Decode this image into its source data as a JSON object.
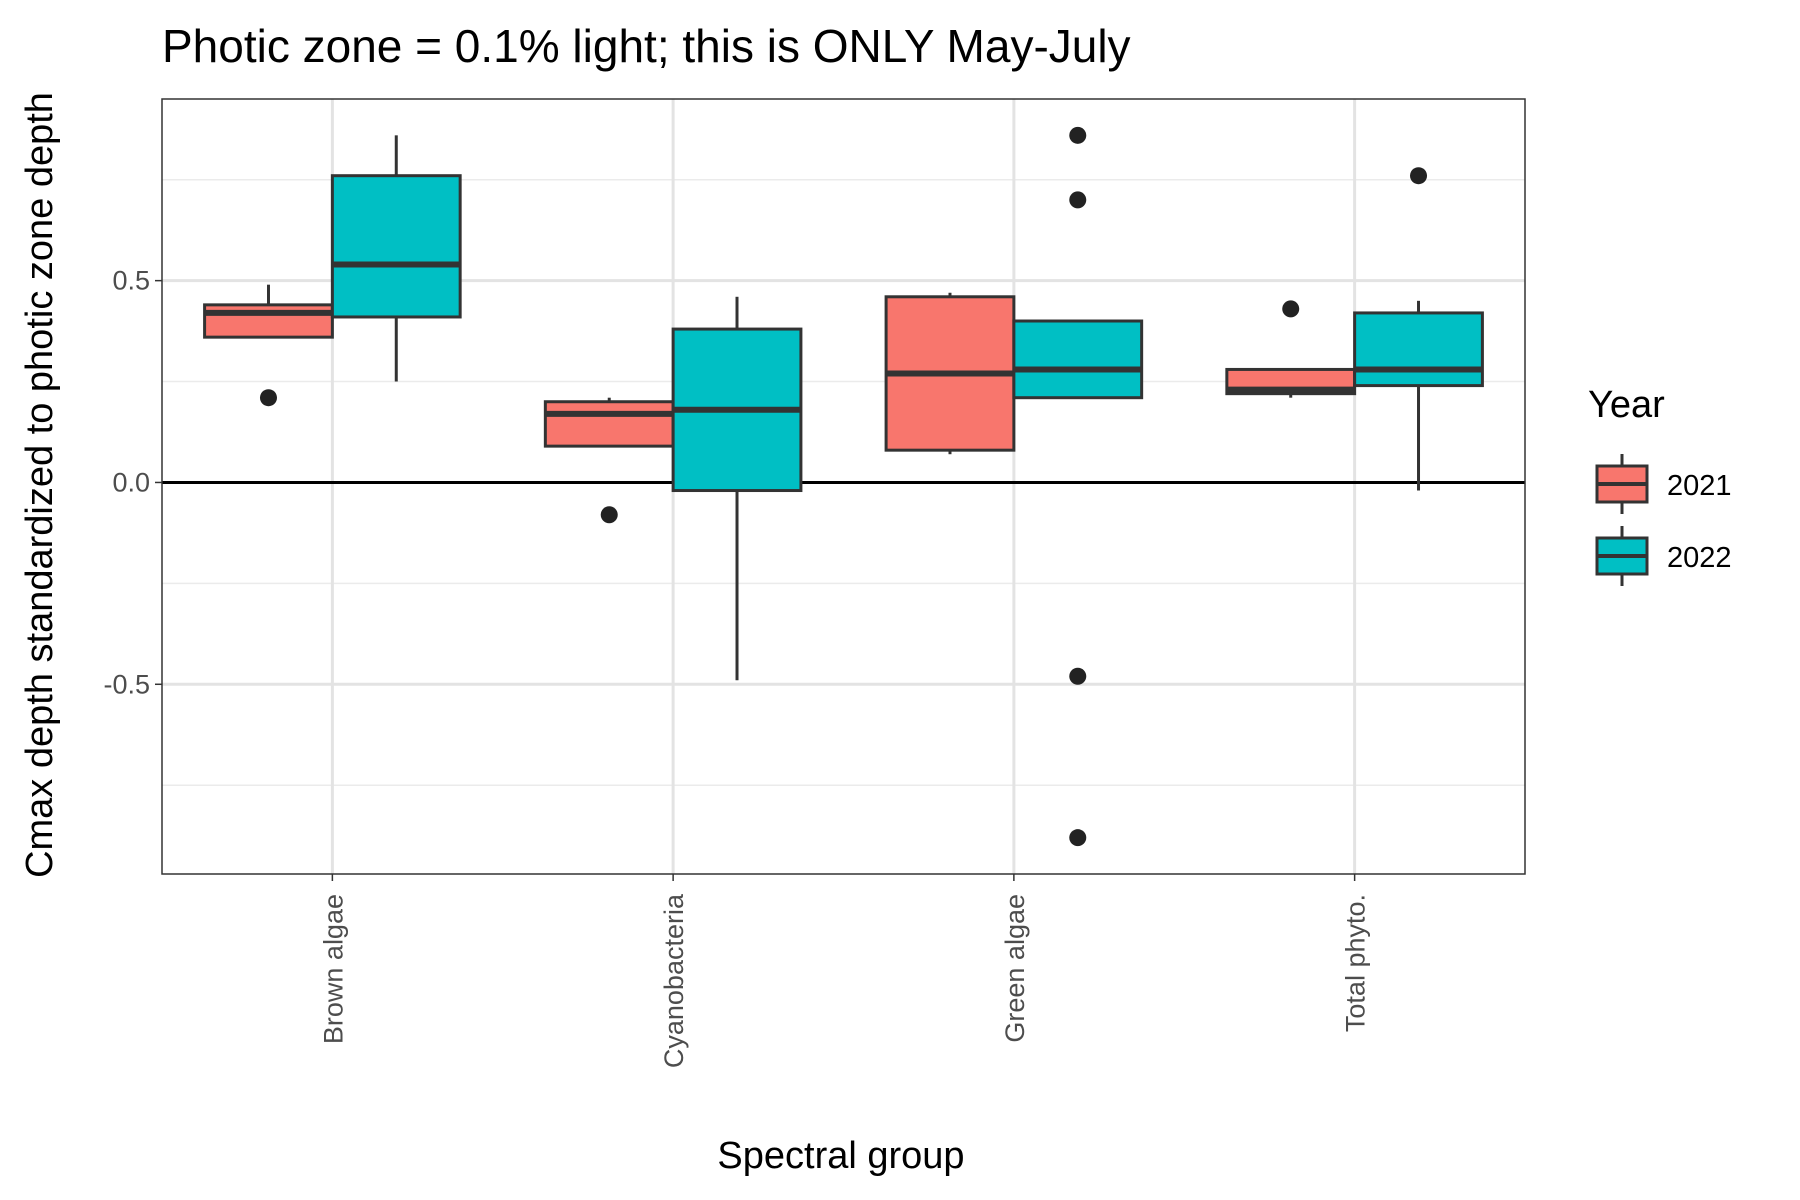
{
  "chart_data": {
    "type": "box",
    "title": "Photic zone = 0.1% light; this is ONLY May-July",
    "xlabel": "Spectral group",
    "ylabel": "Cmax depth standardized to photic zone depth",
    "ylim": [
      -0.97,
      0.95
    ],
    "yticks": [
      "-0.5",
      "0.0",
      "0.5"
    ],
    "ytick_values": [
      -0.5,
      0.0,
      0.5
    ],
    "grid": true,
    "zero_line": true,
    "categories": [
      "Brown algae",
      "Cyanobacteria",
      "Green algae",
      "Total phyto."
    ],
    "legend": {
      "title": "Year",
      "position": "right"
    },
    "series": [
      {
        "name": "2021",
        "color": "#F8766D",
        "boxes": [
          {
            "q1": 0.36,
            "median": 0.42,
            "q3": 0.44,
            "whisker_low": 0.36,
            "whisker_high": 0.49,
            "outliers": [
              0.21
            ]
          },
          {
            "q1": 0.09,
            "median": 0.17,
            "q3": 0.2,
            "whisker_low": 0.09,
            "whisker_high": 0.21,
            "outliers": [
              -0.08
            ]
          },
          {
            "q1": 0.08,
            "median": 0.27,
            "q3": 0.46,
            "whisker_low": 0.07,
            "whisker_high": 0.47,
            "outliers": []
          },
          {
            "q1": 0.22,
            "median": 0.23,
            "q3": 0.28,
            "whisker_low": 0.21,
            "whisker_high": 0.28,
            "outliers": [
              0.43
            ]
          }
        ]
      },
      {
        "name": "2022",
        "color": "#00BFC4",
        "boxes": [
          {
            "q1": 0.41,
            "median": 0.54,
            "q3": 0.76,
            "whisker_low": 0.25,
            "whisker_high": 0.86,
            "outliers": []
          },
          {
            "q1": -0.02,
            "median": 0.18,
            "q3": 0.38,
            "whisker_low": -0.49,
            "whisker_high": 0.46,
            "outliers": []
          },
          {
            "q1": 0.21,
            "median": 0.28,
            "q3": 0.4,
            "whisker_low": 0.21,
            "whisker_high": 0.4,
            "outliers": [
              0.86,
              0.7,
              -0.48,
              -0.88
            ]
          },
          {
            "q1": 0.24,
            "median": 0.28,
            "q3": 0.42,
            "whisker_low": -0.02,
            "whisker_high": 0.45,
            "outliers": [
              0.76
            ]
          }
        ]
      }
    ]
  }
}
